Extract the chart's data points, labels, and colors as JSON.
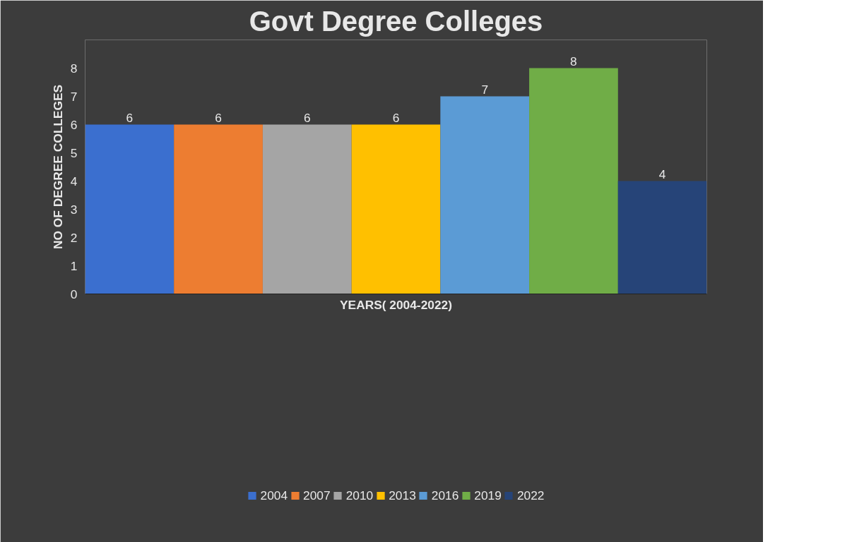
{
  "chart_data": {
    "type": "bar",
    "title": "Govt Degree Colleges",
    "xlabel": "YEARS( 2004-2022)",
    "ylabel": "NO OF DEGREE COLLEGES",
    "categories": [
      null
    ],
    "series": [
      {
        "name": "2004",
        "color": "#3b6fcf",
        "values": [
          6
        ]
      },
      {
        "name": "2007",
        "color": "#ed7d31",
        "values": [
          6
        ]
      },
      {
        "name": "2010",
        "color": "#a5a5a5",
        "values": [
          6
        ]
      },
      {
        "name": "2013",
        "color": "#ffc000",
        "values": [
          6
        ]
      },
      {
        "name": "2016",
        "color": "#5b9bd5",
        "values": [
          7
        ]
      },
      {
        "name": "2019",
        "color": "#70ad47",
        "values": [
          8
        ]
      },
      {
        "name": "2022",
        "color": "#264478",
        "values": [
          4
        ]
      }
    ],
    "ylim": [
      0,
      9
    ],
    "yticks": [
      0,
      1,
      2,
      3,
      4,
      5,
      6,
      7,
      8
    ],
    "data_labels": true,
    "legend": "bottom",
    "grid": false
  }
}
